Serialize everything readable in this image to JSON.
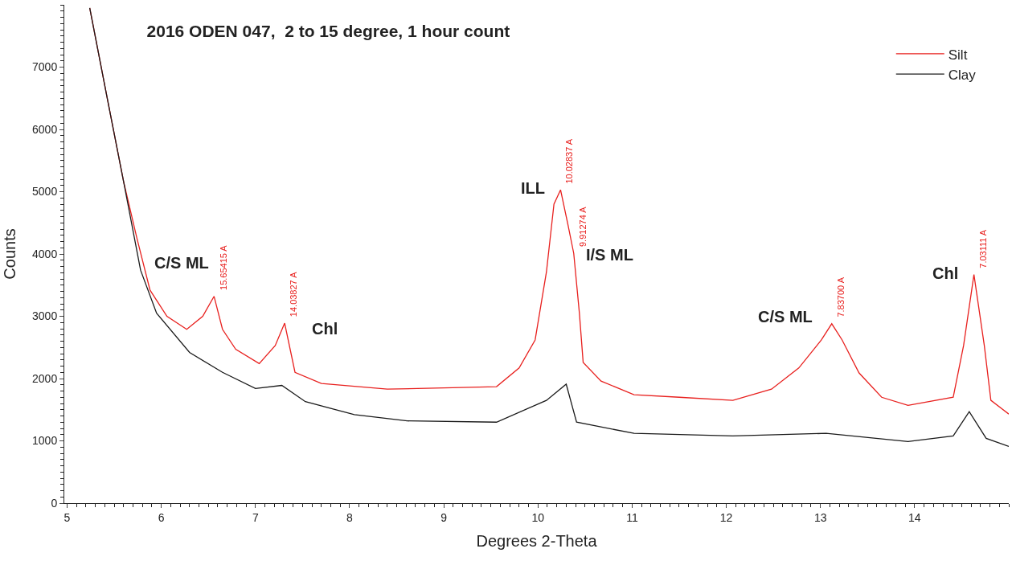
{
  "chart_data": {
    "type": "line",
    "title": "2016 ODEN 047,  2 to 15 degree, 1 hour count",
    "xlabel": "Degrees 2-Theta",
    "ylabel": "Counts",
    "xlim": [
      4.97,
      15.0
    ],
    "ylim": [
      0,
      8000
    ],
    "xticks": [
      5,
      6,
      7,
      8,
      9,
      10,
      11,
      12,
      13,
      14
    ],
    "yticks": [
      0,
      1000,
      2000,
      3000,
      4000,
      5000,
      6000,
      7000
    ],
    "legend": "top right",
    "marker": "none",
    "line_style": "solid",
    "series": [
      {
        "name": "Silt",
        "color": "#e8201e",
        "x": [
          5.24,
          5.43,
          5.6,
          5.74,
          5.88,
          6.06,
          6.27,
          6.44,
          6.56,
          6.65,
          6.79,
          7.04,
          7.21,
          7.31,
          7.42,
          7.7,
          8.4,
          9.0,
          9.56,
          9.8,
          9.97,
          10.09,
          10.17,
          10.24,
          10.32,
          10.38,
          10.44,
          10.48,
          10.67,
          11.02,
          11.5,
          12.07,
          12.48,
          12.77,
          13.01,
          13.12,
          13.23,
          13.41,
          13.65,
          13.93,
          14.41,
          14.52,
          14.63,
          14.74,
          14.81,
          15.0
        ],
        "values": [
          7950,
          6470,
          5160,
          4260,
          3420,
          3000,
          2790,
          3000,
          3320,
          2790,
          2470,
          2240,
          2530,
          2890,
          2100,
          1920,
          1830,
          1850,
          1870,
          2170,
          2620,
          3710,
          4800,
          5030,
          4460,
          4010,
          3050,
          2260,
          1960,
          1740,
          1700,
          1650,
          1830,
          2170,
          2620,
          2880,
          2620,
          2090,
          1700,
          1570,
          1700,
          2530,
          3670,
          2530,
          1650,
          1430
        ]
      },
      {
        "name": "Clay",
        "color": "#1a1a1a",
        "x": [
          5.24,
          5.43,
          5.6,
          5.78,
          5.95,
          6.3,
          6.65,
          7.0,
          7.28,
          7.53,
          8.05,
          8.61,
          9.56,
          10.09,
          10.3,
          10.41,
          11.02,
          12.07,
          13.06,
          13.93,
          14.41,
          14.58,
          14.76,
          15.0
        ],
        "values": [
          7950,
          6470,
          5160,
          3740,
          3050,
          2420,
          2100,
          1840,
          1890,
          1630,
          1420,
          1320,
          1300,
          1650,
          1910,
          1300,
          1120,
          1080,
          1120,
          990,
          1080,
          1470,
          1040,
          910
        ]
      }
    ],
    "annotations": [
      {
        "text": "15.65415 A",
        "x": 6.56,
        "y": 3320
      },
      {
        "text": "C/S ML",
        "x": 6.56,
        "y": 3320
      },
      {
        "text": "14.03827 A",
        "x": 7.31,
        "y": 2890
      },
      {
        "text": "Chl",
        "x": 7.31,
        "y": 2890
      },
      {
        "text": "10.02837 A",
        "x": 10.24,
        "y": 5030
      },
      {
        "text": "ILL",
        "x": 10.24,
        "y": 5030
      },
      {
        "text": "9.91274 A",
        "x": 10.38,
        "y": 4010
      },
      {
        "text": "I/S ML",
        "x": 10.38,
        "y": 4010
      },
      {
        "text": "7.83700 A",
        "x": 13.12,
        "y": 2880
      },
      {
        "text": "C/S ML",
        "x": 13.12,
        "y": 2880
      },
      {
        "text": "7.03111 A",
        "x": 14.63,
        "y": 3670
      },
      {
        "text": "Chl",
        "x": 14.63,
        "y": 3670
      }
    ]
  }
}
